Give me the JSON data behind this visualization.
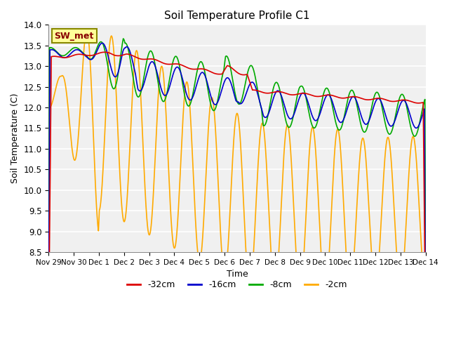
{
  "title": "Soil Temperature Profile C1",
  "xlabel": "Time",
  "ylabel": "Soil Temperature (C)",
  "ylim": [
    8.5,
    14.0
  ],
  "yticks": [
    8.5,
    9.0,
    9.5,
    10.0,
    10.5,
    11.0,
    11.5,
    12.0,
    12.5,
    13.0,
    13.5,
    14.0
  ],
  "background_color": "#f0f0f0",
  "plot_bg_color": "#f0f0f0",
  "legend_entries": [
    "-32cm",
    "-16cm",
    "-8cm",
    "-2cm"
  ],
  "legend_colors": [
    "#dd0000",
    "#0000cc",
    "#00aa00",
    "#ffaa00"
  ],
  "annotation_text": "SW_met",
  "annotation_box_color": "#ffff99",
  "annotation_box_edge": "#888800",
  "annotation_text_color": "#880000",
  "xtick_labels": [
    "Nov 29",
    "Nov 30",
    "Dec 1",
    "Dec 2",
    "Dec 3",
    "Dec 4",
    "Dec 5",
    "Dec 6",
    "Dec 7",
    "Dec 8",
    "Dec 9",
    "Dec 10",
    "Dec 11",
    "Dec 12",
    "Dec 13",
    "Dec 14"
  ],
  "figsize": [
    6.4,
    4.8
  ],
  "dpi": 100
}
